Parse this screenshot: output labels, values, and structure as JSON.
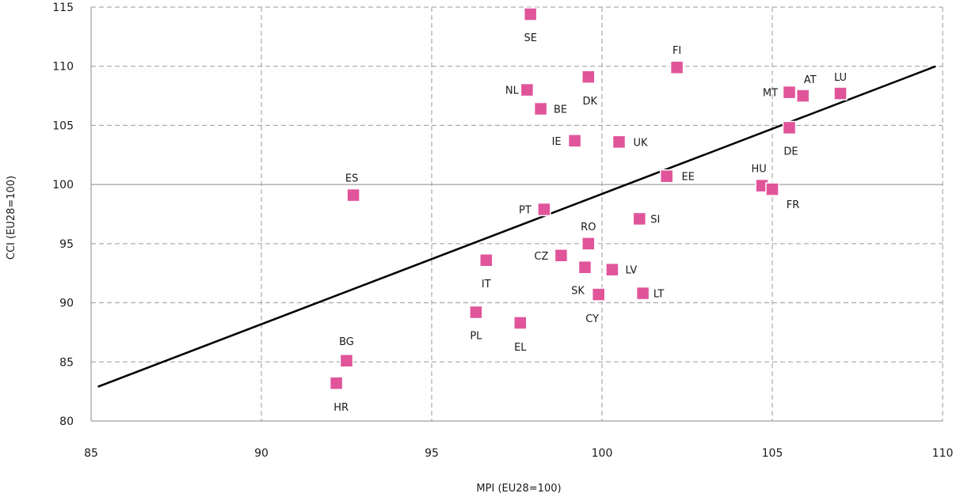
{
  "chart_data": {
    "type": "scatter",
    "xlabel": "MPI (EU28=100)",
    "ylabel": "CCI (EU28=100)",
    "xlim": [
      85,
      110
    ],
    "ylim": [
      80,
      115
    ],
    "xticks": [
      85,
      90,
      95,
      100,
      105,
      110
    ],
    "yticks": [
      80,
      85,
      90,
      95,
      100,
      105,
      110,
      115
    ],
    "reference_line_y": 100,
    "marker_color": "#e0549a",
    "marker_stroke": "#ffffff",
    "grid": true,
    "trendline": {
      "x": [
        85.2,
        109.8
      ],
      "y": [
        82.9,
        110.0
      ]
    },
    "points": [
      {
        "label": "SE",
        "x": 97.9,
        "y": 114.4
      },
      {
        "label": "FI",
        "x": 102.2,
        "y": 109.9
      },
      {
        "label": "DK",
        "x": 99.6,
        "y": 109.1
      },
      {
        "label": "NL",
        "x": 97.8,
        "y": 108.0
      },
      {
        "label": "BE",
        "x": 98.2,
        "y": 106.4
      },
      {
        "label": "MT",
        "x": 105.5,
        "y": 107.8
      },
      {
        "label": "AT",
        "x": 105.9,
        "y": 107.5
      },
      {
        "label": "LU",
        "x": 107.0,
        "y": 107.7
      },
      {
        "label": "DE",
        "x": 105.5,
        "y": 104.8
      },
      {
        "label": "IE",
        "x": 99.2,
        "y": 103.7
      },
      {
        "label": "UK",
        "x": 100.5,
        "y": 103.6
      },
      {
        "label": "EE",
        "x": 101.9,
        "y": 100.7
      },
      {
        "label": "HU",
        "x": 104.7,
        "y": 99.9
      },
      {
        "label": "FR",
        "x": 105.0,
        "y": 99.6
      },
      {
        "label": "ES",
        "x": 92.7,
        "y": 99.1
      },
      {
        "label": "PT",
        "x": 98.3,
        "y": 97.9
      },
      {
        "label": "SI",
        "x": 101.1,
        "y": 97.1
      },
      {
        "label": "RO",
        "x": 99.6,
        "y": 95.0
      },
      {
        "label": "CZ",
        "x": 98.8,
        "y": 94.0
      },
      {
        "label": "IT",
        "x": 96.6,
        "y": 93.6
      },
      {
        "label": "SK",
        "x": 99.5,
        "y": 93.0
      },
      {
        "label": "LV",
        "x": 100.3,
        "y": 92.8
      },
      {
        "label": "CY",
        "x": 99.9,
        "y": 90.7
      },
      {
        "label": "LT",
        "x": 101.2,
        "y": 90.8
      },
      {
        "label": "PL",
        "x": 96.3,
        "y": 89.2
      },
      {
        "label": "EL",
        "x": 97.6,
        "y": 88.3
      },
      {
        "label": "BG",
        "x": 92.5,
        "y": 85.1
      },
      {
        "label": "HR",
        "x": 92.2,
        "y": 83.2
      }
    ]
  }
}
